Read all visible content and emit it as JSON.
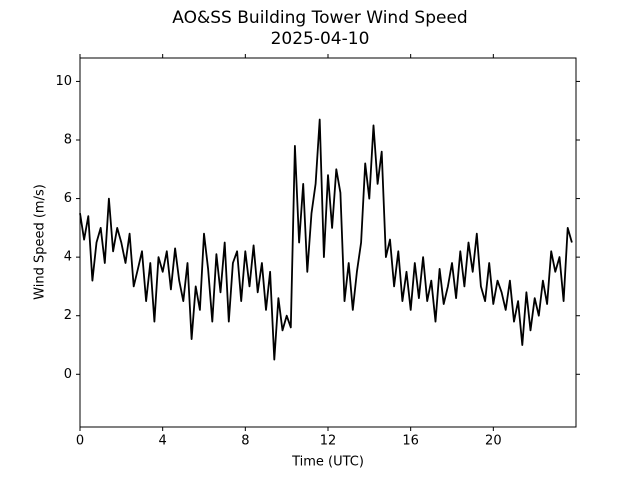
{
  "chart_data": {
    "type": "line",
    "title": "AO&SS Building Tower Wind Speed",
    "subtitle": "2025-04-10",
    "x_label": "Time (UTC)",
    "y_label": "Wind Speed (m/s)",
    "x": [
      0,
      0.2,
      0.4,
      0.6,
      0.8,
      1,
      1.2,
      1.4,
      1.6,
      1.8,
      2,
      2.2,
      2.4,
      2.6,
      2.8,
      3,
      3.2,
      3.4,
      3.6,
      3.8,
      4,
      4.2,
      4.4,
      4.6,
      4.8,
      5,
      5.2,
      5.4,
      5.6,
      5.8,
      6,
      6.2,
      6.4,
      6.6,
      6.8,
      7,
      7.2,
      7.4,
      7.6,
      7.8,
      8,
      8.2,
      8.4,
      8.6,
      8.8,
      9,
      9.2,
      9.4,
      9.6,
      9.8,
      10,
      10.2,
      10.4,
      10.6,
      10.8,
      11,
      11.2,
      11.4,
      11.6,
      11.8,
      12,
      12.2,
      12.4,
      12.6,
      12.8,
      13,
      13.2,
      13.4,
      13.6,
      13.8,
      14,
      14.2,
      14.4,
      14.6,
      14.8,
      15,
      15.2,
      15.4,
      15.6,
      15.8,
      16,
      16.2,
      16.4,
      16.6,
      16.8,
      17,
      17.2,
      17.4,
      17.6,
      17.8,
      18,
      18.2,
      18.4,
      18.6,
      18.8,
      19,
      19.2,
      19.4,
      19.6,
      19.8,
      20,
      20.2,
      20.4,
      20.6,
      20.8,
      21,
      21.2,
      21.4,
      21.6,
      21.8,
      22,
      22.2,
      22.4,
      22.6,
      22.8,
      23,
      23.2,
      23.4,
      23.6,
      23.8
    ],
    "series": [
      {
        "name": "Wind Speed",
        "color": "#000000",
        "values": [
          5.5,
          4.6,
          5.4,
          3.2,
          4.5,
          5.0,
          3.8,
          6.0,
          4.2,
          5.0,
          4.5,
          3.8,
          4.8,
          3.0,
          3.6,
          4.2,
          2.5,
          3.8,
          1.8,
          4.0,
          3.5,
          4.2,
          2.9,
          4.3,
          3.2,
          2.5,
          3.8,
          1.2,
          3.0,
          2.2,
          4.8,
          3.6,
          1.8,
          4.1,
          2.8,
          4.5,
          1.8,
          3.8,
          4.2,
          2.5,
          4.2,
          3.0,
          4.4,
          2.8,
          3.8,
          2.2,
          3.5,
          0.5,
          2.6,
          1.5,
          2.0,
          1.6,
          7.8,
          4.5,
          6.5,
          3.5,
          5.5,
          6.5,
          8.7,
          4.0,
          6.8,
          5.0,
          7.0,
          6.2,
          2.5,
          3.8,
          2.2,
          3.5,
          4.5,
          7.2,
          6.0,
          8.5,
          6.5,
          7.6,
          4.0,
          4.6,
          3.0,
          4.2,
          2.5,
          3.5,
          2.2,
          3.8,
          2.6,
          4.0,
          2.5,
          3.2,
          1.8,
          3.6,
          2.4,
          3.0,
          3.8,
          2.6,
          4.2,
          3.0,
          4.5,
          3.5,
          4.8,
          3.0,
          2.5,
          3.8,
          2.4,
          3.2,
          2.8,
          2.2,
          3.2,
          1.8,
          2.5,
          1.0,
          2.8,
          1.5,
          2.6,
          2.0,
          3.2,
          2.4,
          4.2,
          3.5,
          4.0,
          2.5,
          5.0,
          4.5
        ]
      }
    ],
    "xlim": [
      0,
      24
    ],
    "ylim": [
      -1.8,
      10.8
    ],
    "xticks": [
      0,
      4,
      8,
      12,
      16,
      20
    ],
    "yticks": [
      0,
      2,
      4,
      6,
      8,
      10
    ]
  }
}
